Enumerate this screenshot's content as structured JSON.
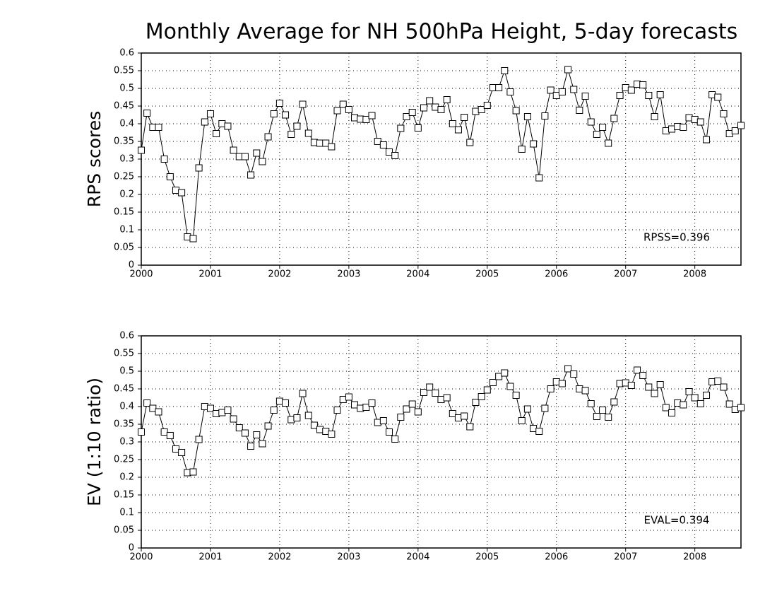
{
  "chart_data": [
    {
      "type": "line",
      "title": "Monthly Average for NH 500hPa Height, 5-day forecasts",
      "ylabel": "RPS scores",
      "annotation": "RPSS=0.396",
      "x": [
        2000,
        2000.083,
        2000.167,
        2000.25,
        2000.333,
        2000.417,
        2000.5,
        2000.583,
        2000.667,
        2000.75,
        2000.833,
        2000.917,
        2001,
        2001.083,
        2001.167,
        2001.25,
        2001.333,
        2001.417,
        2001.5,
        2001.583,
        2001.667,
        2001.75,
        2001.833,
        2001.917,
        2002,
        2002.083,
        2002.167,
        2002.25,
        2002.333,
        2002.417,
        2002.5,
        2002.583,
        2002.667,
        2002.75,
        2002.833,
        2002.917,
        2003,
        2003.083,
        2003.167,
        2003.25,
        2003.333,
        2003.417,
        2003.5,
        2003.583,
        2003.667,
        2003.75,
        2003.833,
        2003.917,
        2004,
        2004.083,
        2004.167,
        2004.25,
        2004.333,
        2004.417,
        2004.5,
        2004.583,
        2004.667,
        2004.75,
        2004.833,
        2004.917,
        2005,
        2005.083,
        2005.167,
        2005.25,
        2005.333,
        2005.417,
        2005.5,
        2005.583,
        2005.667,
        2005.75,
        2005.833,
        2005.917,
        2006,
        2006.083,
        2006.167,
        2006.25,
        2006.333,
        2006.417,
        2006.5,
        2006.583,
        2006.667,
        2006.75,
        2006.833,
        2006.917,
        2007,
        2007.083,
        2007.167,
        2007.25,
        2007.333,
        2007.417,
        2007.5,
        2007.583,
        2007.667,
        2007.75,
        2007.833,
        2007.917,
        2008,
        2008.083,
        2008.167,
        2008.25,
        2008.333,
        2008.417,
        2008.5,
        2008.583,
        2008.667
      ],
      "values": [
        0.325,
        0.43,
        0.39,
        0.39,
        0.3,
        0.25,
        0.212,
        0.205,
        0.08,
        0.075,
        0.275,
        0.405,
        0.428,
        0.372,
        0.4,
        0.393,
        0.325,
        0.307,
        0.307,
        0.255,
        0.317,
        0.293,
        0.363,
        0.428,
        0.458,
        0.425,
        0.37,
        0.393,
        0.455,
        0.373,
        0.347,
        0.345,
        0.345,
        0.335,
        0.437,
        0.455,
        0.44,
        0.417,
        0.413,
        0.412,
        0.423,
        0.35,
        0.34,
        0.32,
        0.31,
        0.387,
        0.42,
        0.432,
        0.388,
        0.445,
        0.465,
        0.447,
        0.44,
        0.468,
        0.4,
        0.383,
        0.418,
        0.347,
        0.435,
        0.44,
        0.452,
        0.502,
        0.502,
        0.55,
        0.49,
        0.437,
        0.328,
        0.42,
        0.343,
        0.247,
        0.422,
        0.495,
        0.48,
        0.49,
        0.553,
        0.497,
        0.438,
        0.478,
        0.405,
        0.37,
        0.39,
        0.345,
        0.415,
        0.48,
        0.502,
        0.495,
        0.512,
        0.51,
        0.48,
        0.42,
        0.482,
        0.38,
        0.385,
        0.392,
        0.39,
        0.417,
        0.412,
        0.405,
        0.355,
        0.482,
        0.475,
        0.428,
        0.372,
        0.38,
        0.395
      ],
      "color": "#000000",
      "xlim": [
        2000,
        2008.667
      ],
      "xticks": [
        2000,
        2001,
        2002,
        2003,
        2004,
        2005,
        2006,
        2007,
        2008
      ],
      "ylim": [
        0,
        0.6
      ],
      "yticks": [
        0,
        0.05,
        0.1,
        0.15,
        0.2,
        0.25,
        0.3,
        0.35,
        0.4,
        0.45,
        0.5,
        0.55,
        0.6
      ],
      "grid": true
    },
    {
      "type": "line",
      "ylabel": "EV (1:10 ratio)",
      "annotation": "EVAL=0.394",
      "x": [
        2000,
        2000.083,
        2000.167,
        2000.25,
        2000.333,
        2000.417,
        2000.5,
        2000.583,
        2000.667,
        2000.75,
        2000.833,
        2000.917,
        2001,
        2001.083,
        2001.167,
        2001.25,
        2001.333,
        2001.417,
        2001.5,
        2001.583,
        2001.667,
        2001.75,
        2001.833,
        2001.917,
        2002,
        2002.083,
        2002.167,
        2002.25,
        2002.333,
        2002.417,
        2002.5,
        2002.583,
        2002.667,
        2002.75,
        2002.833,
        2002.917,
        2003,
        2003.083,
        2003.167,
        2003.25,
        2003.333,
        2003.417,
        2003.5,
        2003.583,
        2003.667,
        2003.75,
        2003.833,
        2003.917,
        2004,
        2004.083,
        2004.167,
        2004.25,
        2004.333,
        2004.417,
        2004.5,
        2004.583,
        2004.667,
        2004.75,
        2004.833,
        2004.917,
        2005,
        2005.083,
        2005.167,
        2005.25,
        2005.333,
        2005.417,
        2005.5,
        2005.583,
        2005.667,
        2005.75,
        2005.833,
        2005.917,
        2006,
        2006.083,
        2006.167,
        2006.25,
        2006.333,
        2006.417,
        2006.5,
        2006.583,
        2006.667,
        2006.75,
        2006.833,
        2006.917,
        2007,
        2007.083,
        2007.167,
        2007.25,
        2007.333,
        2007.417,
        2007.5,
        2007.583,
        2007.667,
        2007.75,
        2007.833,
        2007.917,
        2008,
        2008.083,
        2008.167,
        2008.25,
        2008.333,
        2008.417,
        2008.5,
        2008.583,
        2008.667
      ],
      "values": [
        0.328,
        0.41,
        0.395,
        0.385,
        0.328,
        0.318,
        0.28,
        0.27,
        0.213,
        0.215,
        0.307,
        0.4,
        0.395,
        0.38,
        0.383,
        0.39,
        0.365,
        0.34,
        0.325,
        0.288,
        0.32,
        0.295,
        0.345,
        0.39,
        0.415,
        0.41,
        0.363,
        0.368,
        0.437,
        0.375,
        0.347,
        0.335,
        0.33,
        0.322,
        0.39,
        0.42,
        0.427,
        0.405,
        0.395,
        0.398,
        0.41,
        0.355,
        0.36,
        0.328,
        0.308,
        0.37,
        0.393,
        0.407,
        0.385,
        0.44,
        0.455,
        0.438,
        0.42,
        0.425,
        0.38,
        0.368,
        0.373,
        0.343,
        0.412,
        0.428,
        0.447,
        0.468,
        0.485,
        0.495,
        0.457,
        0.432,
        0.36,
        0.393,
        0.338,
        0.33,
        0.395,
        0.45,
        0.47,
        0.465,
        0.507,
        0.492,
        0.45,
        0.445,
        0.408,
        0.372,
        0.39,
        0.37,
        0.413,
        0.465,
        0.467,
        0.46,
        0.503,
        0.488,
        0.455,
        0.437,
        0.462,
        0.397,
        0.382,
        0.41,
        0.405,
        0.442,
        0.425,
        0.408,
        0.432,
        0.47,
        0.472,
        0.455,
        0.407,
        0.392,
        0.397
      ],
      "color": "#000000",
      "xlim": [
        2000,
        2008.667
      ],
      "xticks": [
        2000,
        2001,
        2002,
        2003,
        2004,
        2005,
        2006,
        2007,
        2008
      ],
      "ylim": [
        0,
        0.6
      ],
      "yticks": [
        0,
        0.05,
        0.1,
        0.15,
        0.2,
        0.25,
        0.3,
        0.35,
        0.4,
        0.45,
        0.5,
        0.55,
        0.6
      ],
      "grid": true
    }
  ]
}
